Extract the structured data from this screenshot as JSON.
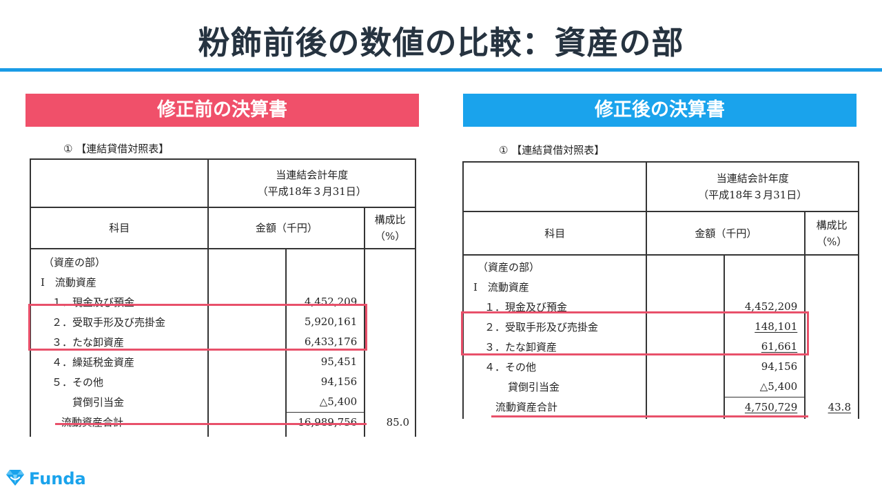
{
  "slide": {
    "title": "粉飾前後の数値の比較：資産の部"
  },
  "colors": {
    "accent_blue": "#1aa3ec",
    "accent_red": "#f0506a",
    "title_text": "#263340"
  },
  "left": {
    "banner": "修正前の決算書",
    "caption": "① 【連結貸借対照表】",
    "header_period": "当連結会計年度",
    "header_date": "（平成18年３月31日）",
    "col_subject": "科目",
    "col_amount": "金額（千円）",
    "col_ratio_line1": "構成比",
    "col_ratio_line2": "（%）",
    "rows": [
      {
        "label": "（資産の部）",
        "value": ""
      },
      {
        "label": "Ⅰ　流動資産",
        "value": ""
      },
      {
        "label": "１．現金及び預金",
        "value": "4,452,209"
      },
      {
        "label": "２．受取手形及び売掛金",
        "value": "5,920,161"
      },
      {
        "label": "３．たな卸資産",
        "value": "6,433,176"
      },
      {
        "label": "４．繰延税金資産",
        "value": "95,451"
      },
      {
        "label": "５．その他",
        "value": "94,156"
      },
      {
        "label": "貸倒引当金",
        "value": "△5,400"
      }
    ],
    "total_label": "流動資産合計",
    "total_value": "16,989,756",
    "total_ratio": "85.0"
  },
  "right": {
    "banner": "修正後の決算書",
    "caption": "① 【連結貸借対照表】",
    "header_period": "当連結会計年度",
    "header_date": "（平成18年３月31日）",
    "col_subject": "科目",
    "col_amount": "金額（千円）",
    "col_ratio_line1": "構成比",
    "col_ratio_line2": "（%）",
    "rows": [
      {
        "label": "（資産の部）",
        "value": ""
      },
      {
        "label": "Ⅰ　流動資産",
        "value": ""
      },
      {
        "label": "１．現金及び預金",
        "value": "4,452,209"
      },
      {
        "label": "２．受取手形及び売掛金",
        "value": "148,101"
      },
      {
        "label": "３．たな卸資産",
        "value": "61,661"
      },
      {
        "label": "４．その他",
        "value": "94,156"
      },
      {
        "label": "貸倒引当金",
        "value": "△5,400"
      }
    ],
    "total_label": "流動資産合計",
    "total_value": "4,750,729",
    "total_ratio": "43.8"
  },
  "logo": {
    "text": "Funda"
  }
}
